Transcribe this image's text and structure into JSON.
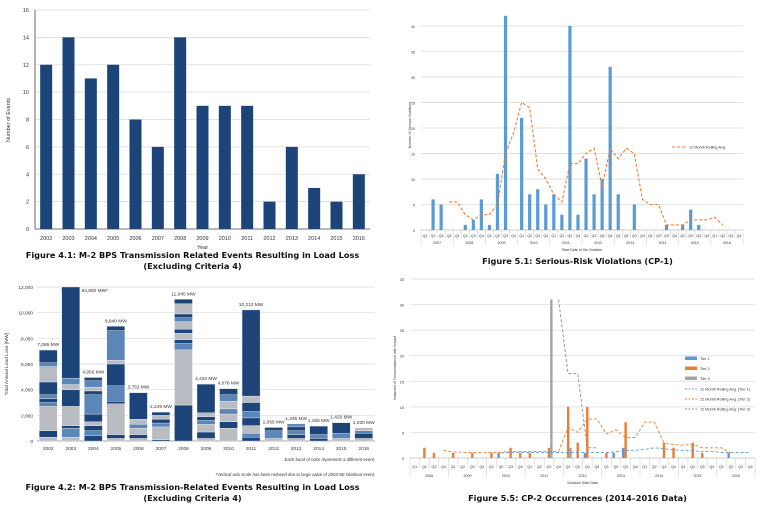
{
  "chart_data": [
    {
      "type": "bar",
      "title": "Figure 4.1: M-2 BPS Transmission Related Events Resulting in Load Loss",
      "subtitle": "(Excluding Criteria 4)",
      "xlabel": "Year",
      "ylabel": "Number of Events",
      "ylim": [
        0,
        16
      ],
      "yticks": [
        "0",
        "2",
        "4",
        "6",
        "8",
        "10",
        "12",
        "14",
        "16"
      ],
      "grid": true,
      "categories": [
        "2002",
        "2003",
        "2004",
        "2005",
        "2006",
        "2007",
        "2008",
        "2009",
        "2010",
        "2011",
        "2012",
        "2013",
        "2014",
        "2015",
        "2016"
      ],
      "values": [
        12,
        14,
        11,
        12,
        8,
        6,
        14,
        9,
        9,
        9,
        2,
        6,
        3,
        2,
        4
      ],
      "color": "#1c4478"
    },
    {
      "type": "bar",
      "stacked": true,
      "title": "Figure 4.2: M-2 BPS Transmission-Related Events Resulting in Load Loss",
      "subtitle": "(Excluding Criteria 4)",
      "ylabel": "Total Annual Load Loss (MW)",
      "ylim": [
        0,
        12000
      ],
      "yticks": [
        "0",
        "2,000",
        "4,000",
        "6,000",
        "8,000",
        "10,000",
        "12,000"
      ],
      "grid": true,
      "categories": [
        "2002",
        "2003",
        "2004",
        "2005",
        "2006",
        "2007",
        "2008",
        "2009",
        "2010",
        "2011",
        "2012",
        "2013",
        "2014",
        "2015",
        "2016"
      ],
      "totals": [
        7085,
        64850,
        4950,
        8940,
        3763,
        2249,
        11045,
        4432,
        4078,
        10212,
        1055,
        1335,
        1160,
        1426,
        1030
      ],
      "data_labels": [
        "7,085 MW",
        "64,850 MW*",
        "4,950 MW",
        "8,940 MW",
        "3,763 MW",
        "2,249 MW",
        "11,045 MW",
        "4,432 MW",
        "4,078 MW",
        "10,212 MW",
        "1,055 MW",
        "1,335 MW",
        "1,160 MW",
        "1,426 MW",
        "1,030 MW"
      ],
      "segments": [
        [
          [
            300,
            2
          ],
          [
            500,
            0
          ],
          [
            1900,
            2
          ],
          [
            300,
            1
          ],
          [
            300,
            0
          ],
          [
            300,
            1
          ],
          [
            1000,
            0
          ],
          [
            1200,
            2
          ],
          [
            300,
            1
          ],
          [
            985,
            0
          ]
        ],
        [
          [
            300,
            2
          ],
          [
            700,
            1
          ],
          [
            200,
            0
          ],
          [
            1500,
            2
          ],
          [
            1300,
            0
          ],
          [
            400,
            2
          ],
          [
            500,
            1
          ],
          [
            7100,
            0
          ]
        ],
        [
          [
            400,
            0
          ],
          [
            400,
            1
          ],
          [
            400,
            0
          ],
          [
            300,
            2
          ],
          [
            600,
            0
          ],
          [
            1500,
            1
          ],
          [
            300,
            0
          ],
          [
            300,
            2
          ],
          [
            500,
            1
          ],
          [
            250,
            0
          ]
        ],
        [
          [
            200,
            2
          ],
          [
            300,
            0
          ],
          [
            2400,
            2
          ],
          [
            200,
            0
          ],
          [
            1200,
            1
          ],
          [
            1700,
            0
          ],
          [
            300,
            2
          ],
          [
            2300,
            1
          ],
          [
            340,
            0
          ]
        ],
        [
          [
            200,
            2
          ],
          [
            300,
            0
          ],
          [
            500,
            2
          ],
          [
            300,
            1
          ],
          [
            400,
            2
          ],
          [
            2063,
            0
          ]
        ],
        [
          [
            100,
            0
          ],
          [
            1000,
            2
          ],
          [
            300,
            1
          ],
          [
            300,
            0
          ],
          [
            300,
            2
          ],
          [
            249,
            0
          ]
        ],
        [
          [
            2800,
            0
          ],
          [
            4300,
            2
          ],
          [
            500,
            1
          ],
          [
            300,
            0
          ],
          [
            500,
            2
          ],
          [
            300,
            0
          ],
          [
            600,
            2
          ],
          [
            300,
            1
          ],
          [
            300,
            0
          ],
          [
            800,
            2
          ],
          [
            345,
            0
          ]
        ],
        [
          [
            200,
            2
          ],
          [
            500,
            0
          ],
          [
            600,
            2
          ],
          [
            300,
            1
          ],
          [
            300,
            0
          ],
          [
            300,
            2
          ],
          [
            2232,
            0
          ]
        ],
        [
          [
            1000,
            2
          ],
          [
            500,
            0
          ],
          [
            600,
            2
          ],
          [
            400,
            1
          ],
          [
            600,
            2
          ],
          [
            500,
            1
          ],
          [
            478,
            0
          ]
        ],
        [
          [
            300,
            0
          ],
          [
            300,
            1
          ],
          [
            600,
            2
          ],
          [
            600,
            0
          ],
          [
            500,
            1
          ],
          [
            700,
            0
          ],
          [
            500,
            2
          ],
          [
            6712,
            0
          ]
        ],
        [
          [
            200,
            2
          ],
          [
            600,
            1
          ],
          [
            255,
            0
          ]
        ],
        [
          [
            200,
            2
          ],
          [
            300,
            0
          ],
          [
            300,
            1
          ],
          [
            300,
            0
          ],
          [
            235,
            1
          ]
        ],
        [
          [
            200,
            0
          ],
          [
            300,
            1
          ],
          [
            660,
            0
          ]
        ],
        [
          [
            200,
            2
          ],
          [
            400,
            1
          ],
          [
            826,
            0
          ]
        ],
        [
          [
            200,
            2
          ],
          [
            400,
            0
          ],
          [
            200,
            1
          ],
          [
            230,
            2
          ]
        ]
      ],
      "band_colors": [
        "#1c4478",
        "#5a86b8",
        "#b9bcc2"
      ],
      "notes": [
        "Each band of color represents a different event.",
        "*Vertical axis scale has been reduced due to large value of 2003 NE blackout event."
      ]
    },
    {
      "type": "bar",
      "title": "Figure 5.1: Serious-Risk Violations (CP-1)",
      "xlabel": "Start Date of the Violation",
      "ylabel": "Number of Serious Violations",
      "ylim": [
        0,
        45
      ],
      "yticks": [
        "0",
        "5",
        "10",
        "15",
        "20",
        "25",
        "30",
        "35",
        "40"
      ],
      "grid": true,
      "quarters": [
        "Q1",
        "Q2",
        "Q3",
        "Q4"
      ],
      "years": [
        "2007",
        "2008",
        "2009",
        "2010",
        "2011",
        "2012",
        "2013",
        "2014",
        "2015",
        "2016"
      ],
      "values": [
        0,
        6,
        5,
        0,
        0,
        1,
        2,
        6,
        1,
        11,
        42,
        0,
        22,
        7,
        8,
        5,
        7,
        3,
        40,
        3,
        14,
        7,
        10,
        32,
        7,
        0,
        5,
        0,
        0,
        0,
        1,
        0,
        1,
        4,
        1,
        0,
        0,
        0,
        0,
        0
      ],
      "series": [
        {
          "name": "12 Month Rolling Avg.",
          "values": [
            null,
            null,
            null,
            5.5,
            5.5,
            3,
            2,
            3,
            3,
            5,
            15,
            19,
            25,
            24,
            12,
            10,
            7,
            5.5,
            13,
            13,
            15,
            16,
            8.5,
            16,
            14,
            16,
            15,
            6,
            5,
            5,
            1,
            1,
            1,
            2,
            2,
            2,
            2.5,
            1,
            null,
            null
          ]
        }
      ],
      "bar_color": "#5b9bd5",
      "line_color": "#ed7d31",
      "legend": "right"
    },
    {
      "type": "bar",
      "title": "Figure 5.5: CP-2 Occurrences (2014–2016 Data)",
      "xlabel": "Violation Start Date",
      "ylabel": "Instances of Noncompliance with Impact",
      "ylim": [
        0,
        35
      ],
      "yticks": [
        "0",
        "5",
        "10",
        "15",
        "20",
        "25",
        "30",
        "35"
      ],
      "grid": true,
      "quarters": [
        "Q1",
        "Q2",
        "Q3",
        "Q4"
      ],
      "years": [
        "2008",
        "2009",
        "2010",
        "2011",
        "2012",
        "2013",
        "2014",
        "2015",
        "2016"
      ],
      "bars": [
        {
          "name": "Tier 1",
          "color": "#5b9bd5",
          "values": [
            0,
            0,
            0,
            0,
            0,
            0,
            0,
            0,
            0,
            1,
            0,
            0,
            0,
            0,
            0,
            0,
            0,
            0,
            1,
            0,
            0,
            1,
            2,
            0,
            0,
            0,
            0,
            0,
            0,
            0,
            0,
            0,
            0,
            1,
            0,
            0
          ]
        },
        {
          "name": "Tier 2",
          "color": "#ed7d31",
          "values": [
            0,
            2,
            1,
            0,
            1,
            0,
            1,
            0,
            1,
            0,
            2,
            1,
            1,
            0,
            2,
            0,
            10,
            3,
            10,
            0,
            1,
            0,
            7,
            0,
            0,
            0,
            3,
            2,
            0,
            3,
            1,
            0,
            0,
            0,
            0,
            0
          ]
        },
        {
          "name": "Tier 3",
          "color": "#a5a5a5",
          "values": [
            0,
            0,
            0,
            0,
            0,
            0,
            0,
            0,
            0,
            0,
            0,
            0,
            0,
            0,
            31,
            0,
            2,
            0,
            0,
            0,
            0,
            0,
            0,
            0,
            0,
            0,
            0,
            0,
            0,
            0,
            0,
            0,
            0,
            0,
            0,
            0
          ]
        }
      ],
      "lines": [
        {
          "name": "12 Month Rolling Avg. (Tier 1)",
          "color": "#5b9bd5",
          "values": [
            null,
            null,
            null,
            null,
            null,
            null,
            null,
            null,
            null,
            1,
            1.1,
            1.1,
            1.1,
            1.1,
            1.1,
            1.1,
            1.1,
            1.1,
            1.1,
            1.1,
            1.1,
            1.2,
            1.5,
            1.5,
            1.7,
            2,
            1.8,
            1.6,
            1.5,
            1.4,
            1.3,
            1.3,
            1.1,
            1.1,
            1.1,
            1.1
          ]
        },
        {
          "name": "12 Month Rolling Avg. (Tier 2)",
          "color": "#ed7d31",
          "values": [
            null,
            null,
            null,
            1.5,
            1.2,
            1.1,
            1.1,
            1.1,
            1.1,
            1.1,
            1.3,
            1.3,
            1.3,
            1.3,
            1.3,
            1.3,
            6,
            5,
            7.6,
            7.6,
            4.7,
            5.5,
            4,
            4,
            7,
            7,
            3,
            2.6,
            2.5,
            2.7,
            2,
            2,
            2,
            1,
            null,
            null
          ]
        },
        {
          "name": "12 Month Rolling Avg. (Tier 3)",
          "color": "#8c8c8c",
          "values": [
            null,
            null,
            null,
            null,
            null,
            null,
            null,
            null,
            null,
            null,
            null,
            null,
            null,
            null,
            null,
            31,
            16.5,
            16.5,
            2,
            2,
            null,
            null,
            null,
            null,
            null,
            null,
            null,
            null,
            null,
            null,
            null,
            null,
            null,
            null,
            null,
            null
          ]
        }
      ],
      "legend": "right"
    }
  ]
}
